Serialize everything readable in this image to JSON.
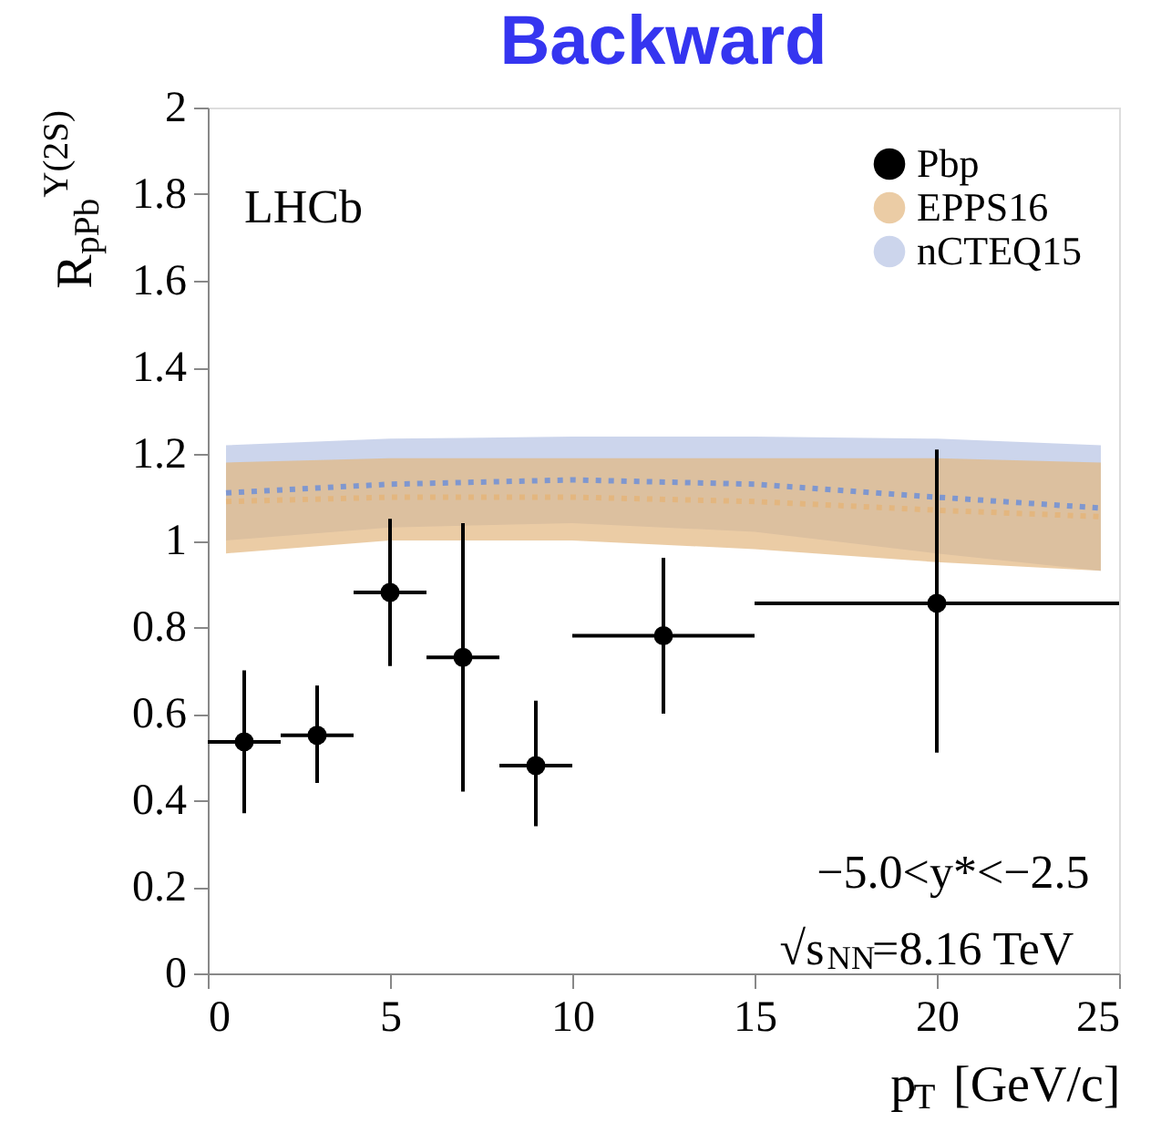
{
  "chart_data": {
    "type": "scatter",
    "title": "Backward",
    "xlabel": "p$_{T}$ [GeV/c]",
    "ylabel": "R$_{pPb}$$^{Υ(2S)}$",
    "xlim": [
      0,
      25
    ],
    "xticks": [
      0,
      5,
      10,
      15,
      20,
      25
    ],
    "ylim": [
      0,
      2
    ],
    "yticks": [
      0,
      0.2,
      0.4,
      0.6,
      0.8,
      1,
      1.2,
      1.4,
      1.6,
      1.8,
      2
    ],
    "grid": false,
    "legend": "top right",
    "annotations": [
      "LHCb",
      "−5.0<y*<−2.5",
      "√s$_{NN}$=8.16 TeV"
    ],
    "series": [
      {
        "name": "nCTEQ15",
        "type": "line",
        "line_style": "dotted",
        "color": "#7f97cf",
        "x": [
          0.5,
          5,
          10,
          15,
          20,
          24.5
        ],
        "values": [
          1.11,
          1.13,
          1.14,
          1.13,
          1.1,
          1.075
        ],
        "lower": [
          1.0,
          1.03,
          1.04,
          1.02,
          0.97,
          0.93
        ],
        "upper": [
          1.22,
          1.235,
          1.24,
          1.24,
          1.235,
          1.22
        ]
      },
      {
        "name": "EPPS16",
        "type": "line",
        "line_style": "dotted",
        "color": "#e3b67f",
        "x": [
          0.5,
          5,
          10,
          15,
          20,
          24.5
        ],
        "values": [
          1.09,
          1.1,
          1.1,
          1.09,
          1.07,
          1.055
        ],
        "lower": [
          0.97,
          1.0,
          1.0,
          0.98,
          0.95,
          0.93
        ],
        "upper": [
          1.18,
          1.19,
          1.19,
          1.19,
          1.19,
          1.18
        ]
      },
      {
        "name": "Pbp",
        "color": "#000000",
        "marker": "circle",
        "x": [
          1,
          3,
          5,
          7,
          9,
          12.5,
          20
        ],
        "values": [
          0.535,
          0.55,
          0.88,
          0.73,
          0.48,
          0.78,
          0.855
        ],
        "errors": [
          [
            0.37,
            0.7
          ],
          [
            0.44,
            0.665
          ],
          [
            0.71,
            1.05
          ],
          [
            0.42,
            1.04
          ],
          [
            0.34,
            0.63
          ],
          [
            0.6,
            0.96
          ],
          [
            0.51,
            1.21
          ]
        ],
        "xerrors": [
          [
            0,
            2
          ],
          [
            2,
            4
          ],
          [
            4,
            6
          ],
          [
            6,
            8
          ],
          [
            8,
            10
          ],
          [
            10,
            15
          ],
          [
            15,
            25
          ]
        ]
      }
    ]
  }
}
